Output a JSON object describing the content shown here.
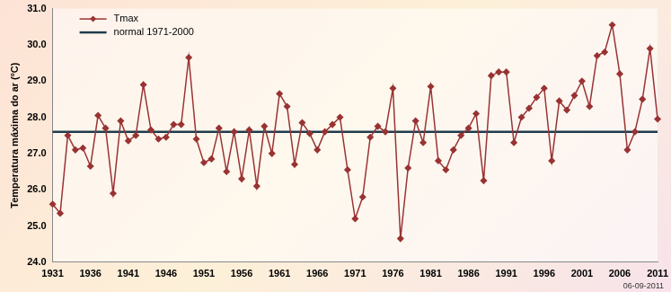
{
  "chart_data": {
    "type": "line",
    "y_label": "Temperatura máxima do ar (ºC)",
    "annotation": "06-09-2011",
    "legend": "upper left",
    "grid": false,
    "categories": [
      "1931",
      null,
      null,
      null,
      null,
      "1936",
      null,
      null,
      null,
      null,
      "1941",
      null,
      null,
      null,
      null,
      "1946",
      null,
      null,
      null,
      null,
      "1951",
      null,
      null,
      null,
      null,
      "1956",
      null,
      null,
      null,
      null,
      "1961",
      null,
      null,
      null,
      null,
      "1966",
      null,
      null,
      null,
      null,
      "1971",
      null,
      null,
      null,
      null,
      "1976",
      null,
      null,
      null,
      null,
      "1981",
      null,
      null,
      null,
      null,
      "1986",
      null,
      null,
      null,
      null,
      "1991",
      null,
      null,
      null,
      null,
      "1996",
      null,
      null,
      null,
      null,
      "2001",
      null,
      null,
      null,
      null,
      "2006",
      null,
      null,
      null,
      null,
      "2011"
    ],
    "ylim": [
      24,
      31
    ],
    "yticks": [
      {
        "value": 24,
        "label": "24.0"
      },
      {
        "value": 25,
        "label": "25.0"
      },
      {
        "value": 26,
        "label": "26.0"
      },
      {
        "value": 27,
        "label": "27.0"
      },
      {
        "value": 28,
        "label": "28.0"
      },
      {
        "value": 29,
        "label": "29.0"
      },
      {
        "value": 30,
        "label": "30.0"
      },
      {
        "value": 31,
        "label": "31.0"
      }
    ],
    "series": [
      {
        "name": "Tmax",
        "color": "#993333",
        "marker": "diamond",
        "line_style": "solid",
        "values": [
          25.6,
          25.35,
          27.5,
          27.1,
          27.15,
          26.65,
          28.05,
          27.7,
          25.9,
          27.9,
          27.35,
          27.5,
          28.9,
          27.65,
          27.4,
          27.45,
          27.8,
          27.8,
          29.65,
          27.4,
          26.75,
          26.85,
          27.7,
          26.5,
          27.6,
          26.3,
          27.65,
          26.1,
          27.75,
          27.0,
          28.65,
          28.3,
          26.7,
          27.85,
          27.55,
          27.1,
          27.6,
          27.8,
          28.0,
          26.55,
          25.2,
          25.8,
          27.45,
          27.75,
          27.6,
          28.8,
          24.65,
          26.6,
          27.9,
          27.3,
          28.85,
          26.8,
          26.55,
          27.1,
          27.5,
          27.7,
          28.1,
          26.25,
          29.15,
          29.25,
          29.25,
          27.3,
          28.0,
          28.25,
          28.55,
          28.8,
          26.8,
          28.45,
          28.2,
          28.6,
          29.0,
          28.3,
          29.7,
          29.8,
          30.55,
          29.2,
          27.1,
          27.6,
          28.5,
          29.9,
          27.95
        ]
      },
      {
        "name": "normal 1971-2000",
        "color": "#1f3b4d",
        "marker": "none",
        "line_style": "solid",
        "values": [
          27.6,
          27.6,
          27.6,
          27.6,
          27.6,
          27.6,
          27.6,
          27.6,
          27.6,
          27.6,
          27.6,
          27.6,
          27.6,
          27.6,
          27.6,
          27.6,
          27.6,
          27.6,
          27.6,
          27.6,
          27.6,
          27.6,
          27.6,
          27.6,
          27.6,
          27.6,
          27.6,
          27.6,
          27.6,
          27.6,
          27.6,
          27.6,
          27.6,
          27.6,
          27.6,
          27.6,
          27.6,
          27.6,
          27.6,
          27.6,
          27.6,
          27.6,
          27.6,
          27.6,
          27.6,
          27.6,
          27.6,
          27.6,
          27.6,
          27.6,
          27.6,
          27.6,
          27.6,
          27.6,
          27.6,
          27.6,
          27.6,
          27.6,
          27.6,
          27.6,
          27.6,
          27.6,
          27.6,
          27.6,
          27.6,
          27.6,
          27.6,
          27.6,
          27.6,
          27.6,
          27.6,
          27.6,
          27.6,
          27.6,
          27.6,
          27.6,
          27.6,
          27.6,
          27.6,
          27.6,
          27.6
        ]
      }
    ]
  }
}
